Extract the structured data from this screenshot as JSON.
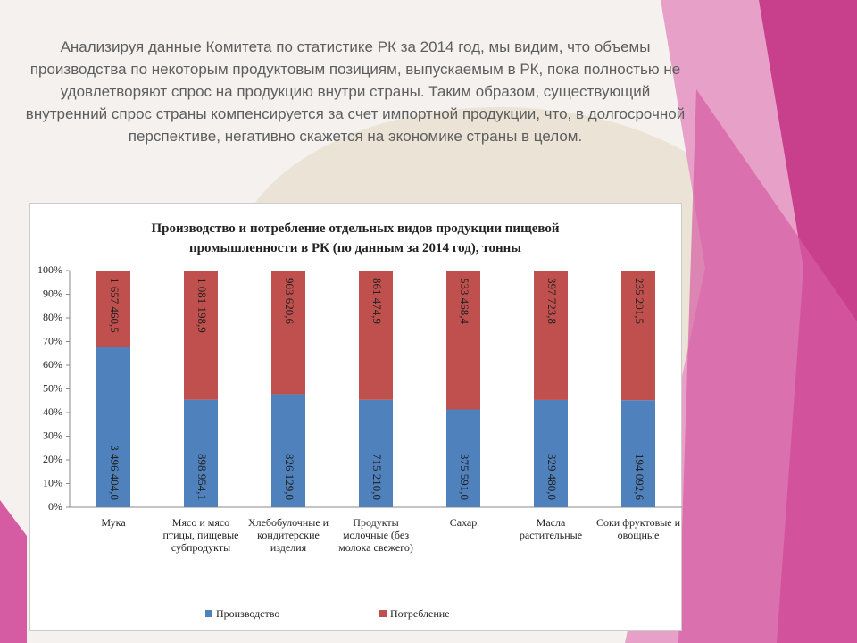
{
  "text": "Анализируя данные Комитета по статистике РК за 2014 год, мы видим, что объемы производства по некоторым продуктовым позициям, выпускаемым в РК, пока полностью не удовлетворяют спрос на продукцию внутри страны. Таким образом, существующий внутренний спрос страны компенсируется за счет импортной продукции, что, в долгосрочной перспективе, негативно скажется на экономике страны в целом.",
  "chart_data": {
    "type": "bar",
    "stacked": "percent",
    "title": "Производство и потребление отдельных видов продукции пищевой промышленности в РК (по данным за 2014 год), тонны",
    "categories": [
      "Мука",
      "Мясо и мясо птицы, пищевые субпродукты",
      "Хлебобулочные и кондитерские изделия",
      "Продукты молочные (без молока свежего)",
      "Сахар",
      "Масла растительные",
      "Соки фруктовые и овощные"
    ],
    "series": [
      {
        "name": "Производство",
        "color": "#4f81bd",
        "values": [
          3496404.0,
          898954.1,
          826129.0,
          715210.0,
          375591.0,
          329480.0,
          194092.6
        ],
        "value_labels": [
          "3 496 404,0",
          "898 954,1",
          "826 129,0",
          "715 210,0",
          "375 591,0",
          "329 480,0",
          "194 092,6"
        ]
      },
      {
        "name": "Потребление",
        "color": "#c0504d",
        "values": [
          1657460.5,
          1081198.9,
          903620.6,
          861474.9,
          533468.4,
          397723.8,
          235201.5
        ],
        "value_labels": [
          "1 657 460,5",
          "1 081 198,9",
          "903 620,6",
          "861 474,9",
          "533 468,4",
          "397 723,8",
          "235 201,5"
        ]
      }
    ],
    "ylim": [
      0,
      100
    ],
    "yticks": [
      {
        "value": 0,
        "label": "0%"
      },
      {
        "value": 10,
        "label": "10%"
      },
      {
        "value": 20,
        "label": "20%"
      },
      {
        "value": 30,
        "label": "30%"
      },
      {
        "value": 40,
        "label": "40%"
      },
      {
        "value": 50,
        "label": "50%"
      },
      {
        "value": 60,
        "label": "60%"
      },
      {
        "value": 70,
        "label": "70%"
      },
      {
        "value": 80,
        "label": "80%"
      },
      {
        "value": 90,
        "label": "90%"
      },
      {
        "value": 100,
        "label": "100%"
      }
    ],
    "legend": "bottom"
  }
}
